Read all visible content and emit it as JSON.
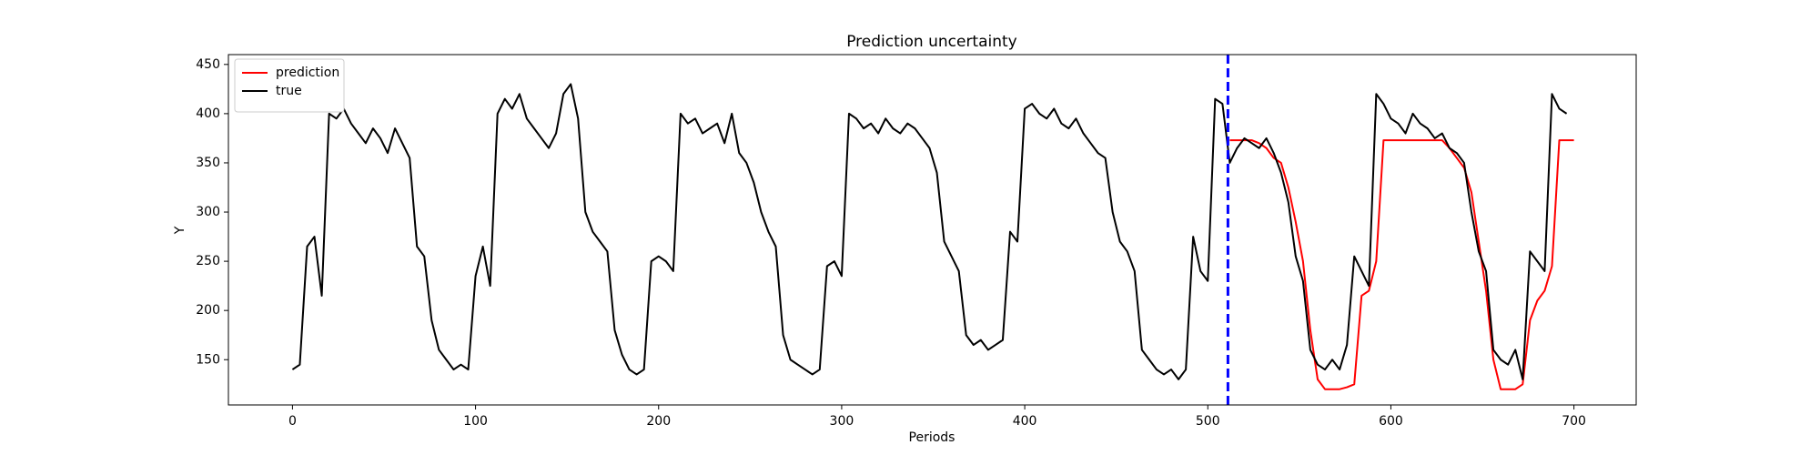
{
  "chart_data": {
    "type": "line",
    "title": "Prediction uncertainty",
    "x_label": "Periods",
    "y_label": "Y",
    "xlim": [
      -35,
      734
    ],
    "ylim": [
      104,
      460
    ],
    "xticks": [
      0,
      100,
      200,
      300,
      400,
      500,
      600,
      700
    ],
    "yticks": [
      150,
      200,
      250,
      300,
      350,
      400,
      450
    ],
    "grid": false,
    "legend": "upper left",
    "vline": {
      "x": 511,
      "color": "#0000ff"
    },
    "series": [
      {
        "name": "prediction",
        "color": "#ff0000",
        "x": [
          512,
          516,
          520,
          524,
          528,
          532,
          536,
          540,
          544,
          548,
          552,
          556,
          560,
          564,
          568,
          572,
          576,
          580,
          584,
          588,
          592,
          596,
          600,
          604,
          608,
          612,
          616,
          620,
          624,
          628,
          632,
          636,
          640,
          644,
          648,
          652,
          656,
          660,
          664,
          668,
          672,
          676,
          680,
          684,
          688,
          692,
          696,
          700
        ],
        "values": [
          373,
          373,
          373,
          373,
          370,
          365,
          355,
          350,
          325,
          290,
          250,
          180,
          130,
          120,
          120,
          120,
          122,
          125,
          215,
          220,
          250,
          373,
          373,
          373,
          373,
          373,
          373,
          373,
          373,
          373,
          365,
          355,
          345,
          320,
          270,
          220,
          150,
          120,
          120,
          120,
          125,
          190,
          210,
          220,
          245,
          373,
          373,
          373
        ]
      },
      {
        "name": "true",
        "color": "#000000",
        "x": [
          0,
          4,
          8,
          12,
          16,
          20,
          24,
          28,
          32,
          36,
          40,
          44,
          48,
          52,
          56,
          60,
          64,
          68,
          72,
          76,
          80,
          84,
          88,
          92,
          96,
          100,
          104,
          108,
          112,
          116,
          120,
          124,
          128,
          132,
          136,
          140,
          144,
          148,
          152,
          156,
          160,
          164,
          168,
          172,
          176,
          180,
          184,
          188,
          192,
          196,
          200,
          204,
          208,
          212,
          216,
          220,
          224,
          228,
          232,
          236,
          240,
          244,
          248,
          252,
          256,
          260,
          264,
          268,
          272,
          276,
          280,
          284,
          288,
          292,
          296,
          300,
          304,
          308,
          312,
          316,
          320,
          324,
          328,
          332,
          336,
          340,
          344,
          348,
          352,
          356,
          360,
          364,
          368,
          372,
          376,
          380,
          384,
          388,
          392,
          396,
          400,
          404,
          408,
          412,
          416,
          420,
          424,
          428,
          432,
          436,
          440,
          444,
          448,
          452,
          456,
          460,
          464,
          468,
          472,
          476,
          480,
          484,
          488,
          492,
          496,
          500,
          504,
          508,
          512,
          516,
          520,
          524,
          528,
          532,
          536,
          540,
          544,
          548,
          552,
          556,
          560,
          564,
          568,
          572,
          576,
          580,
          584,
          588,
          592,
          596,
          600,
          604,
          608,
          612,
          616,
          620,
          624,
          628,
          632,
          636,
          640,
          644,
          648,
          652,
          656,
          660,
          664,
          668,
          672,
          676,
          680,
          684,
          688,
          692,
          696
        ],
        "values": [
          140,
          145,
          265,
          275,
          215,
          400,
          395,
          405,
          390,
          380,
          370,
          385,
          375,
          360,
          385,
          370,
          355,
          265,
          255,
          190,
          160,
          150,
          140,
          145,
          140,
          235,
          265,
          225,
          400,
          415,
          405,
          420,
          395,
          385,
          375,
          365,
          380,
          420,
          430,
          395,
          300,
          280,
          270,
          260,
          180,
          155,
          140,
          135,
          140,
          250,
          255,
          250,
          240,
          400,
          390,
          395,
          380,
          385,
          390,
          370,
          400,
          360,
          350,
          330,
          300,
          280,
          265,
          175,
          150,
          145,
          140,
          135,
          140,
          245,
          250,
          235,
          400,
          395,
          385,
          390,
          380,
          395,
          385,
          380,
          390,
          385,
          375,
          365,
          340,
          270,
          255,
          240,
          175,
          165,
          170,
          160,
          165,
          170,
          280,
          270,
          405,
          410,
          400,
          395,
          405,
          390,
          385,
          395,
          380,
          370,
          360,
          355,
          300,
          270,
          260,
          240,
          160,
          150,
          140,
          135,
          140,
          130,
          140,
          275,
          240,
          230,
          415,
          410,
          350,
          365,
          375,
          370,
          365,
          375,
          360,
          340,
          310,
          255,
          230,
          160,
          145,
          140,
          150,
          140,
          165,
          255,
          240,
          225,
          420,
          410,
          395,
          390,
          380,
          400,
          390,
          385,
          375,
          380,
          365,
          360,
          350,
          300,
          260,
          240,
          160,
          150,
          145,
          160,
          130,
          260,
          250,
          240,
          420,
          405,
          400
        ]
      }
    ]
  }
}
